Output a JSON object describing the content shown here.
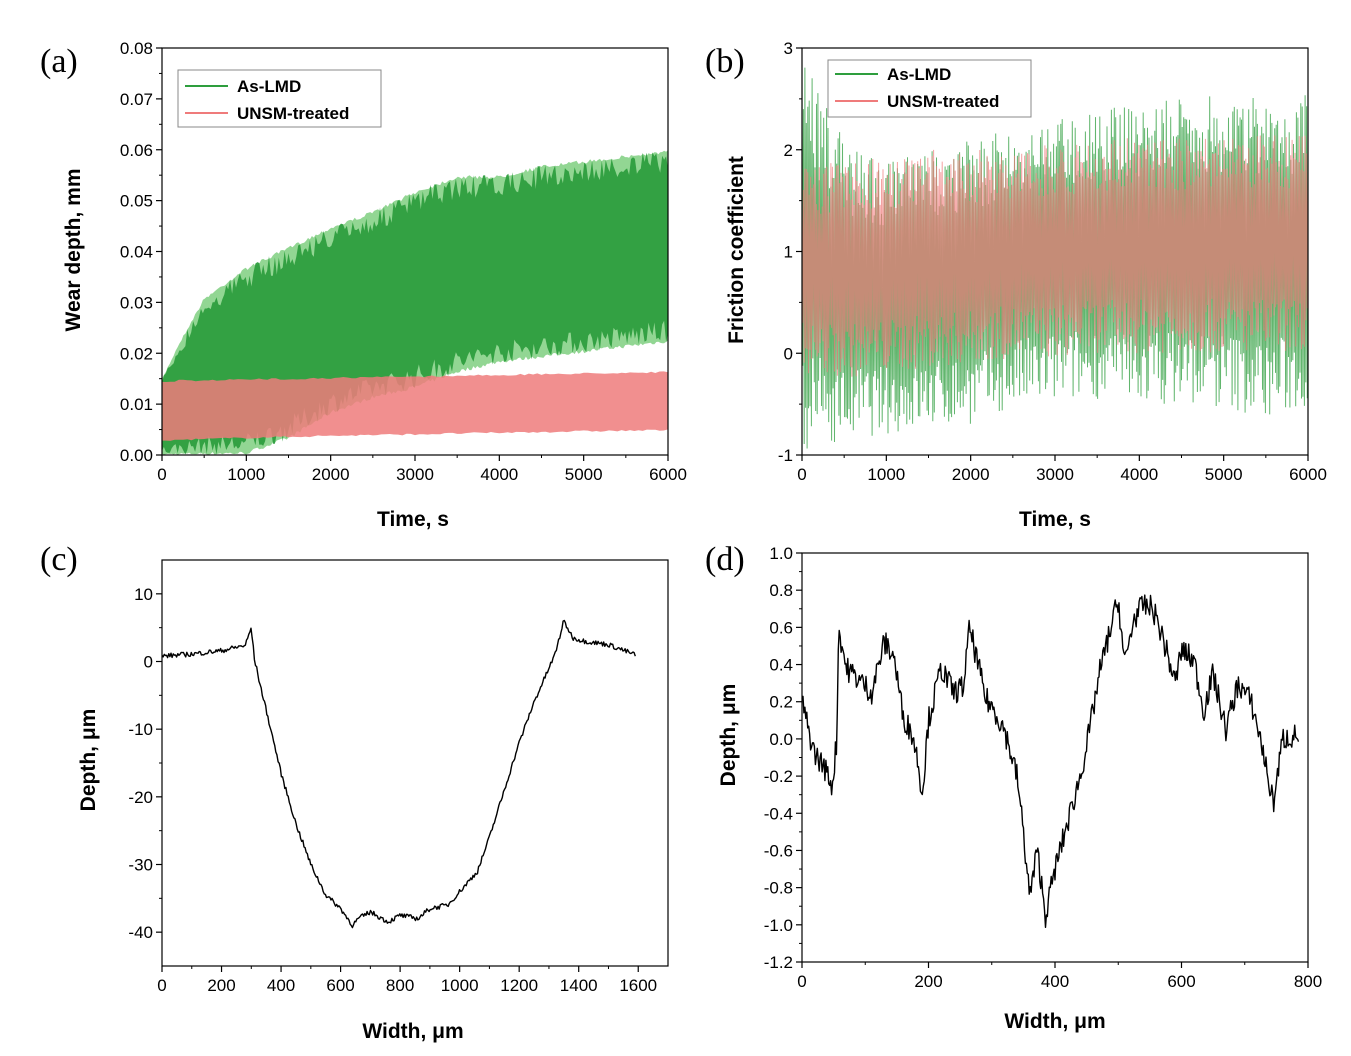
{
  "colors": {
    "as_lmd": "#2e9e3e",
    "as_lmd_light": "#7fcf80",
    "unsm": "#ef7b7b",
    "unsm_dark": "#c85050",
    "profile": "#000000"
  },
  "chart_data": [
    {
      "panel": "(a)",
      "type": "area",
      "xlabel": "Time, s",
      "ylabel": "Wear depth, mm",
      "xlim": [
        0,
        6000
      ],
      "ylim": [
        0,
        0.08
      ],
      "x_ticks": [
        "0",
        "1000",
        "2000",
        "3000",
        "4000",
        "5000",
        "6000"
      ],
      "y_ticks": [
        "0.00",
        "0.01",
        "0.02",
        "0.03",
        "0.04",
        "0.05",
        "0.06",
        "0.07",
        "0.08"
      ],
      "legend": [
        "As-LMD",
        "UNSM-treated"
      ],
      "legend_position": "top-left",
      "series": [
        {
          "name": "As-LMD",
          "x": [
            0,
            200,
            500,
            1000,
            1500,
            2000,
            2500,
            3000,
            3500,
            4000,
            4500,
            5000,
            5500,
            6000
          ],
          "upper": [
            0.015,
            0.022,
            0.031,
            0.037,
            0.041,
            0.045,
            0.048,
            0.052,
            0.055,
            0.055,
            0.057,
            0.058,
            0.059,
            0.06
          ],
          "lower": [
            0.0,
            0.0,
            0.0,
            0.0,
            0.003,
            0.008,
            0.011,
            0.013,
            0.016,
            0.018,
            0.019,
            0.02,
            0.021,
            0.022
          ]
        },
        {
          "name": "UNSM-treated",
          "x": [
            0,
            200,
            1000,
            2000,
            3000,
            4000,
            5000,
            6000
          ],
          "upper": [
            0.0145,
            0.0148,
            0.015,
            0.0153,
            0.0156,
            0.0159,
            0.0162,
            0.0165
          ],
          "lower": [
            0.0025,
            0.0028,
            0.0032,
            0.0036,
            0.0039,
            0.0042,
            0.0045,
            0.0047
          ]
        }
      ]
    },
    {
      "panel": "(b)",
      "type": "line",
      "xlabel": "Time, s",
      "ylabel": "Friction coefficient",
      "xlim": [
        0,
        6000
      ],
      "ylim": [
        -1,
        3
      ],
      "x_ticks": [
        "0",
        "1000",
        "2000",
        "3000",
        "4000",
        "5000",
        "6000"
      ],
      "y_ticks": [
        "-1",
        "0",
        "1",
        "2",
        "3"
      ],
      "legend": [
        "As-LMD",
        "UNSM-treated"
      ],
      "legend_position": "top-left",
      "series": [
        {
          "name": "As-LMD",
          "x": [
            0,
            500,
            1000,
            1500,
            2000,
            2500,
            3000,
            3500,
            4000,
            4500,
            5000,
            5500,
            6000
          ],
          "upper": [
            2.9,
            2.1,
            1.9,
            2.0,
            2.1,
            2.2,
            2.35,
            2.4,
            2.45,
            2.5,
            2.55,
            2.5,
            2.55
          ],
          "lower": [
            -0.95,
            -0.85,
            -0.8,
            -0.75,
            -0.7,
            -0.55,
            -0.5,
            -0.45,
            -0.5,
            -0.5,
            -0.55,
            -0.65,
            -0.55
          ]
        },
        {
          "name": "UNSM-treated",
          "x": [
            0,
            500,
            1000,
            1500,
            2000,
            2500,
            3000,
            3500,
            4000,
            4500,
            5000,
            5500,
            6000
          ],
          "upper": [
            1.85,
            1.9,
            1.95,
            2.0,
            2.0,
            2.05,
            2.08,
            2.1,
            2.12,
            2.13,
            2.14,
            2.14,
            2.15
          ],
          "lower": [
            -0.2,
            -0.25,
            -0.2,
            -0.15,
            -0.1,
            -0.05,
            -0.05,
            0.0,
            0.0,
            0.0,
            0.0,
            0.0,
            0.02
          ]
        }
      ]
    },
    {
      "panel": "(c)",
      "type": "line",
      "xlabel": "Width, μm",
      "ylabel": "Depth, μm",
      "xlim": [
        0,
        1700
      ],
      "ylim": [
        -45,
        15
      ],
      "x_ticks": [
        "0",
        "200",
        "400",
        "600",
        "800",
        "1000",
        "1200",
        "1400",
        "1600"
      ],
      "y_ticks": [
        "-40",
        "-30",
        "-20",
        "-10",
        "0",
        "10"
      ],
      "x": [
        0,
        100,
        200,
        280,
        300,
        310,
        330,
        360,
        400,
        450,
        500,
        550,
        600,
        640,
        660,
        700,
        760,
        800,
        860,
        900,
        960,
        1000,
        1060,
        1100,
        1150,
        1200,
        1250,
        1290,
        1320,
        1350,
        1380,
        1420,
        1500,
        1590
      ],
      "y": [
        0.8,
        1.1,
        1.6,
        2.4,
        5.0,
        0.5,
        -3.5,
        -9.0,
        -16.5,
        -24.0,
        -30.0,
        -34.5,
        -36.5,
        -39.0,
        -38.0,
        -37.0,
        -38.5,
        -37.5,
        -38.0,
        -36.5,
        -36.0,
        -34.0,
        -31.0,
        -26.0,
        -19.0,
        -12.0,
        -6.0,
        -2.0,
        1.0,
        6.0,
        3.5,
        3.0,
        2.5,
        1.0
      ]
    },
    {
      "panel": "(d)",
      "type": "line",
      "xlabel": "Width, μm",
      "ylabel": "Depth, μm",
      "xlim": [
        0,
        800
      ],
      "ylim": [
        -1.2,
        1.0
      ],
      "x_ticks": [
        "0",
        "200",
        "400",
        "600",
        "800"
      ],
      "y_ticks": [
        "-1.2",
        "-1.0",
        "-0.8",
        "-0.6",
        "-0.4",
        "-0.2",
        "0.0",
        "0.2",
        "0.4",
        "0.6",
        "0.8",
        "1.0"
      ],
      "x": [
        0,
        10,
        20,
        35,
        48,
        55,
        58,
        70,
        90,
        110,
        130,
        145,
        160,
        175,
        185,
        190,
        200,
        220,
        240,
        255,
        265,
        275,
        290,
        305,
        320,
        340,
        350,
        360,
        372,
        385,
        400,
        420,
        440,
        455,
        470,
        490,
        500,
        510,
        525,
        540,
        555,
        570,
        590,
        600,
        620,
        635,
        650,
        670,
        690,
        710,
        725,
        745,
        760,
        785
      ],
      "y": [
        0.2,
        0.05,
        -0.08,
        -0.15,
        -0.25,
        0.0,
        0.6,
        0.38,
        0.32,
        0.25,
        0.52,
        0.45,
        0.12,
        0.02,
        -0.15,
        -0.3,
        0.1,
        0.38,
        0.25,
        0.28,
        0.6,
        0.45,
        0.22,
        0.15,
        0.05,
        -0.2,
        -0.5,
        -0.85,
        -0.6,
        -0.95,
        -0.7,
        -0.45,
        -0.2,
        0.05,
        0.35,
        0.62,
        0.75,
        0.4,
        0.65,
        0.72,
        0.7,
        0.55,
        0.3,
        0.48,
        0.42,
        0.15,
        0.35,
        0.05,
        0.3,
        0.2,
        0.0,
        -0.35,
        0.0,
        0.02
      ]
    }
  ]
}
